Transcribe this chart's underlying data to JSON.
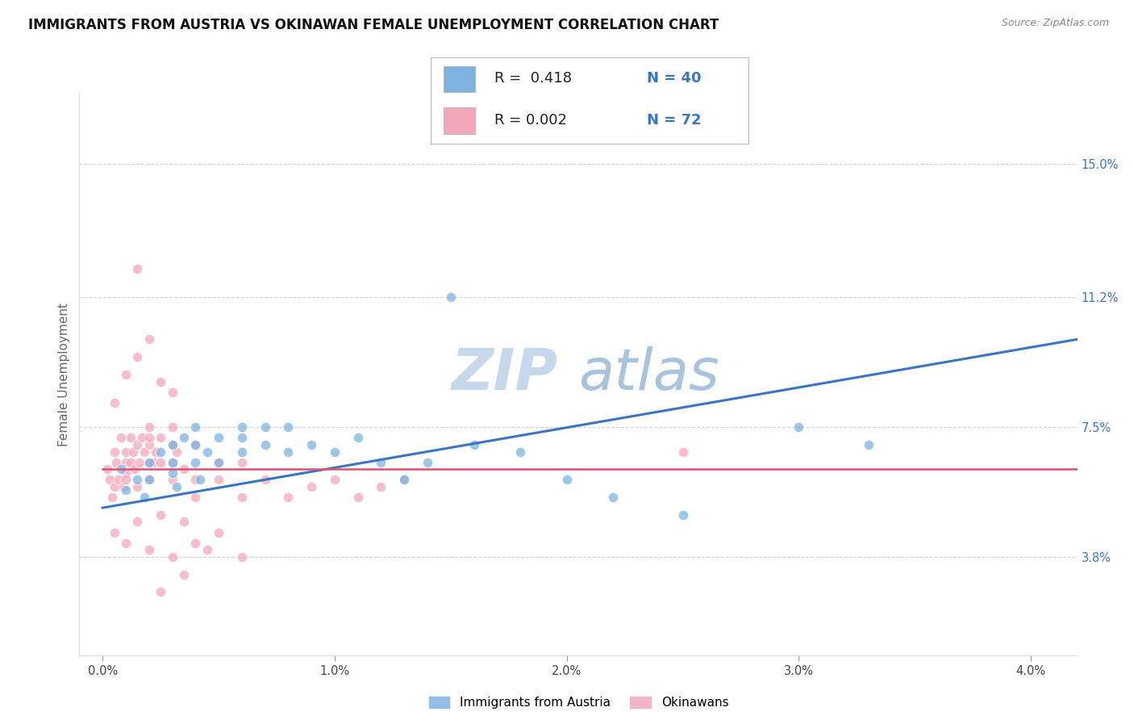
{
  "title": "IMMIGRANTS FROM AUSTRIA VS OKINAWAN FEMALE UNEMPLOYMENT CORRELATION CHART",
  "source": "Source: ZipAtlas.com",
  "xlabel_blue": "Immigrants from Austria",
  "xlabel_pink": "Okinawans",
  "ylabel": "Female Unemployment",
  "legend_blue_r": "R =  0.418",
  "legend_blue_n": "N = 40",
  "legend_pink_r": "R = 0.002",
  "legend_pink_n": "N = 72",
  "x_ticks": [
    "0.0%",
    "1.0%",
    "2.0%",
    "3.0%",
    "4.0%"
  ],
  "x_tick_vals": [
    0.0,
    0.01,
    0.02,
    0.03,
    0.04
  ],
  "y_ticks_right": [
    "3.8%",
    "7.5%",
    "11.2%",
    "15.0%"
  ],
  "y_tick_vals": [
    0.038,
    0.075,
    0.112,
    0.15
  ],
  "xlim": [
    -0.001,
    0.042
  ],
  "ylim": [
    0.01,
    0.17
  ],
  "blue_color": "#7EB3E0",
  "pink_color": "#F4A7BB",
  "trend_blue_color": "#3A75C4",
  "trend_pink_color": "#E05070",
  "watermark_zip": "ZIP",
  "watermark_atlas": "atlas",
  "background_color": "#FFFFFF",
  "grid_color": "#CCCCCC",
  "title_fontsize": 12,
  "axis_label_fontsize": 11,
  "tick_fontsize": 10.5,
  "legend_fontsize": 14,
  "watermark_fontsize": 52,
  "blue_scatter_x": [
    0.0008,
    0.001,
    0.0015,
    0.0018,
    0.002,
    0.002,
    0.0025,
    0.003,
    0.003,
    0.003,
    0.0032,
    0.0035,
    0.004,
    0.004,
    0.004,
    0.0042,
    0.0045,
    0.005,
    0.005,
    0.006,
    0.006,
    0.006,
    0.007,
    0.007,
    0.008,
    0.008,
    0.009,
    0.01,
    0.011,
    0.012,
    0.013,
    0.014,
    0.016,
    0.018,
    0.02,
    0.022,
    0.025,
    0.015,
    0.03,
    0.033
  ],
  "blue_scatter_y": [
    0.063,
    0.057,
    0.06,
    0.055,
    0.065,
    0.06,
    0.068,
    0.062,
    0.07,
    0.065,
    0.058,
    0.072,
    0.065,
    0.07,
    0.075,
    0.06,
    0.068,
    0.065,
    0.072,
    0.068,
    0.072,
    0.075,
    0.075,
    0.07,
    0.068,
    0.075,
    0.07,
    0.068,
    0.072,
    0.065,
    0.06,
    0.065,
    0.07,
    0.068,
    0.06,
    0.055,
    0.05,
    0.112,
    0.075,
    0.07
  ],
  "pink_scatter_x": [
    0.0002,
    0.0003,
    0.0004,
    0.0005,
    0.0005,
    0.0006,
    0.0007,
    0.0008,
    0.0009,
    0.001,
    0.001,
    0.001,
    0.001,
    0.0012,
    0.0012,
    0.0013,
    0.0014,
    0.0015,
    0.0015,
    0.0016,
    0.0017,
    0.0018,
    0.002,
    0.002,
    0.002,
    0.002,
    0.0022,
    0.0023,
    0.0025,
    0.0025,
    0.003,
    0.003,
    0.003,
    0.003,
    0.0032,
    0.0035,
    0.004,
    0.004,
    0.004,
    0.005,
    0.005,
    0.006,
    0.006,
    0.007,
    0.008,
    0.009,
    0.01,
    0.011,
    0.012,
    0.013,
    0.0005,
    0.001,
    0.0015,
    0.002,
    0.0025,
    0.003,
    0.0035,
    0.004,
    0.005,
    0.006,
    0.0005,
    0.001,
    0.0015,
    0.002,
    0.0025,
    0.003,
    0.025,
    0.0015,
    0.0025,
    0.0035,
    0.0045,
    0.002
  ],
  "pink_scatter_y": [
    0.063,
    0.06,
    0.055,
    0.068,
    0.058,
    0.065,
    0.06,
    0.072,
    0.058,
    0.068,
    0.062,
    0.065,
    0.06,
    0.072,
    0.065,
    0.068,
    0.063,
    0.07,
    0.058,
    0.065,
    0.072,
    0.068,
    0.07,
    0.065,
    0.06,
    0.072,
    0.065,
    0.068,
    0.072,
    0.065,
    0.075,
    0.07,
    0.065,
    0.06,
    0.068,
    0.063,
    0.07,
    0.06,
    0.055,
    0.065,
    0.06,
    0.055,
    0.065,
    0.06,
    0.055,
    0.058,
    0.06,
    0.055,
    0.058,
    0.06,
    0.045,
    0.042,
    0.048,
    0.04,
    0.05,
    0.038,
    0.048,
    0.042,
    0.045,
    0.038,
    0.082,
    0.09,
    0.095,
    0.1,
    0.088,
    0.085,
    0.068,
    0.12,
    0.028,
    0.033,
    0.04,
    0.075
  ],
  "blue_trendline_x": [
    0.0,
    0.042
  ],
  "blue_trendline_y": [
    0.052,
    0.1
  ],
  "pink_trendline_x": [
    0.0,
    0.042
  ],
  "pink_trendline_y": [
    0.063,
    0.063
  ]
}
